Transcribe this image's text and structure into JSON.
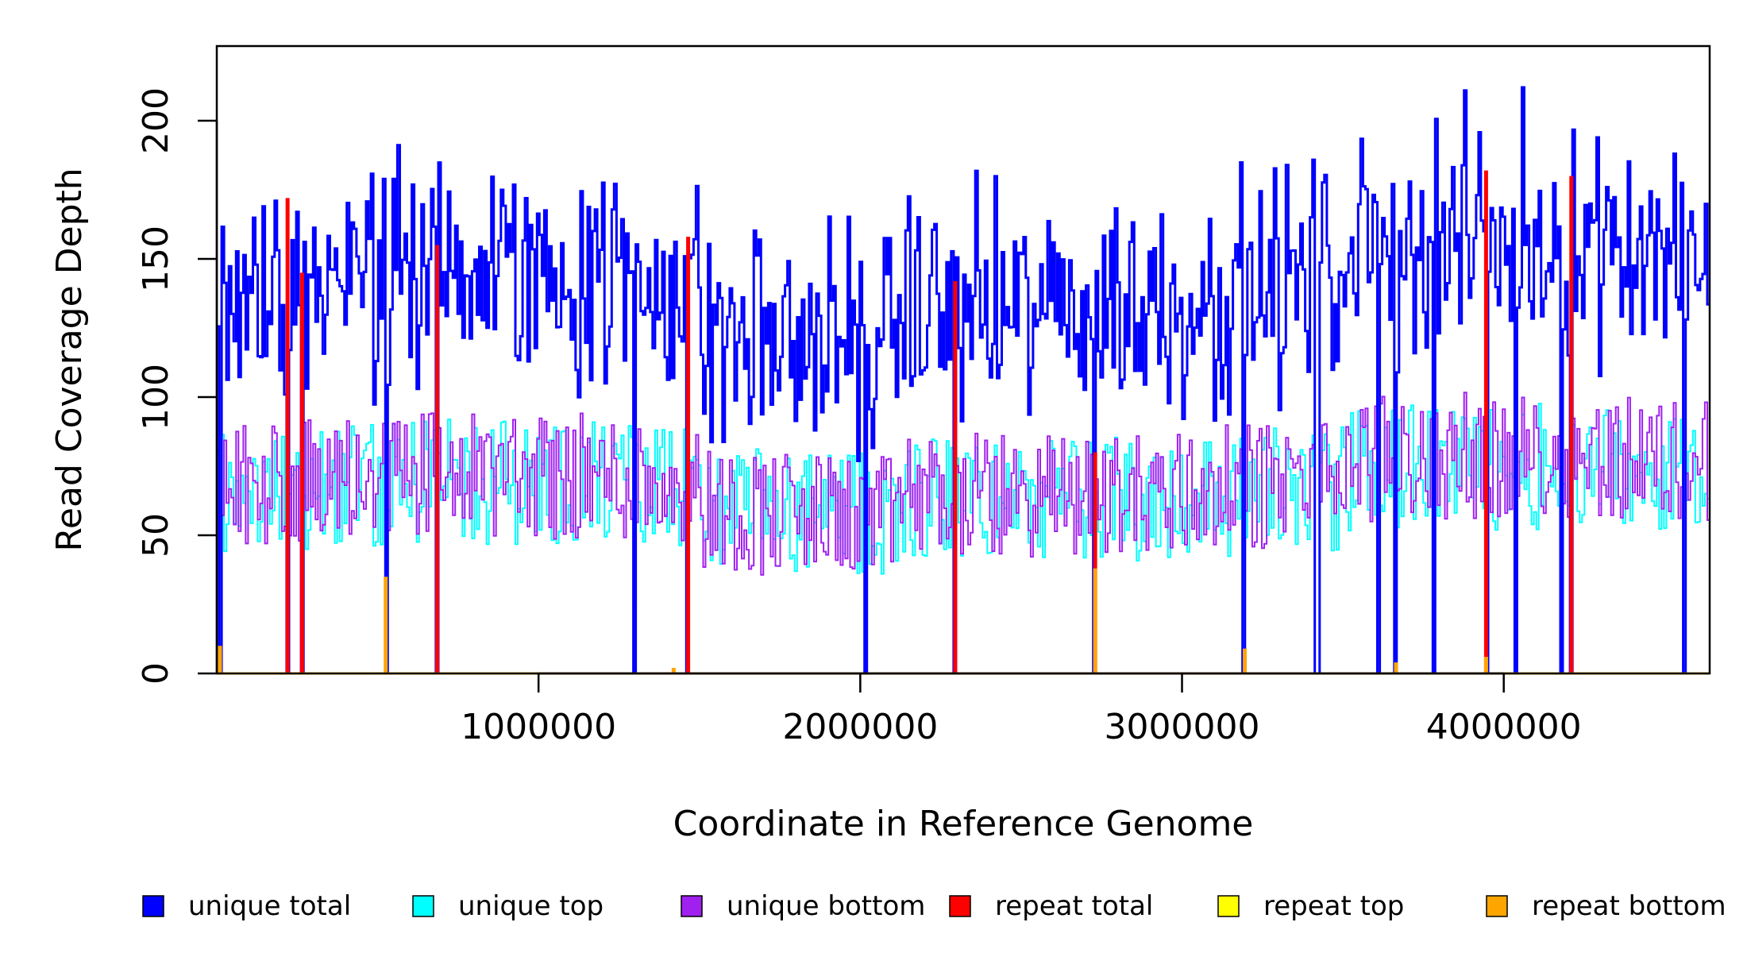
{
  "chart_data": {
    "type": "line",
    "title": "",
    "xlabel": "Coordinate in Reference Genome",
    "ylabel": "Read Coverage Depth",
    "xlim": [
      0,
      4640000
    ],
    "ylim": [
      0,
      227
    ],
    "x_ticks": [
      1000000,
      2000000,
      3000000,
      4000000
    ],
    "x_tick_labels": [
      "1000000",
      "2000000",
      "3000000",
      "4000000"
    ],
    "y_ticks": [
      0,
      50,
      100,
      150,
      200
    ],
    "y_tick_labels": [
      "0",
      "50",
      "100",
      "150",
      "200"
    ],
    "grid": false,
    "legend_position": "bottom",
    "series": [
      {
        "name": "unique total",
        "color": "#0000FF",
        "style": "step",
        "approx_baseline": 135,
        "approx_range": [
          0,
          222
        ]
      },
      {
        "name": "unique top",
        "color": "#00FFFF",
        "style": "step",
        "approx_baseline": 66,
        "approx_range": [
          0,
          130
        ]
      },
      {
        "name": "unique bottom",
        "color": "#A020F0",
        "style": "step",
        "approx_baseline": 68,
        "approx_range": [
          0,
          116
        ]
      },
      {
        "name": "repeat total",
        "color": "#FF0000",
        "style": "step",
        "spikes": [
          {
            "x": 220000,
            "y": 172
          },
          {
            "x": 265000,
            "y": 145
          },
          {
            "x": 685000,
            "y": 155
          },
          {
            "x": 1465000,
            "y": 158
          },
          {
            "x": 2295000,
            "y": 142
          },
          {
            "x": 2730000,
            "y": 80
          },
          {
            "x": 3945000,
            "y": 182
          },
          {
            "x": 4210000,
            "y": 180
          }
        ]
      },
      {
        "name": "repeat top",
        "color": "#FFFF00",
        "style": "step",
        "spikes": []
      },
      {
        "name": "repeat bottom",
        "color": "#FFA500",
        "style": "step",
        "spikes": [
          {
            "x": 10000,
            "y": 10
          },
          {
            "x": 525000,
            "y": 35
          },
          {
            "x": 1420000,
            "y": 2
          },
          {
            "x": 2730000,
            "y": 38
          },
          {
            "x": 3195000,
            "y": 9
          },
          {
            "x": 3665000,
            "y": 4
          },
          {
            "x": 3945000,
            "y": 6
          }
        ]
      }
    ],
    "dropouts_x": [
      10000,
      220000,
      265000,
      525000,
      685000,
      1300000,
      1465000,
      2020000,
      2295000,
      2730000,
      3195000,
      3420000,
      3610000,
      3665000,
      3780000,
      3945000,
      4040000,
      4180000,
      4210000,
      4560000
    ]
  },
  "legend": {
    "items": [
      {
        "label": "unique total",
        "color": "#0000FF"
      },
      {
        "label": "unique top",
        "color": "#00FFFF"
      },
      {
        "label": "unique bottom",
        "color": "#A020F0"
      },
      {
        "label": "repeat total",
        "color": "#FF0000"
      },
      {
        "label": "repeat top",
        "color": "#FFFF00"
      },
      {
        "label": "repeat bottom",
        "color": "#FFA500"
      }
    ]
  }
}
